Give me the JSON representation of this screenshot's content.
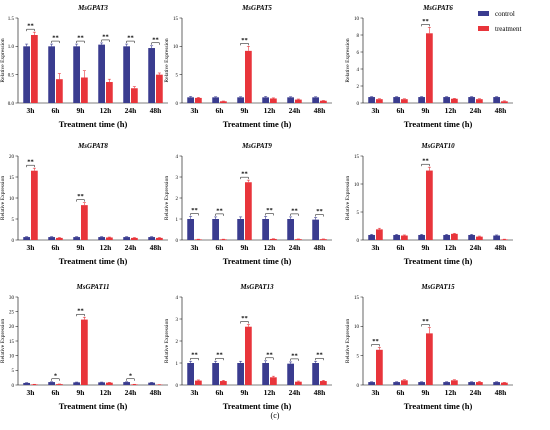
{
  "figure": {
    "caption": "(c)",
    "legend": [
      {
        "label": "control",
        "color": "#3a3c8f"
      },
      {
        "label": "treatment",
        "color": "#e8353b"
      }
    ]
  },
  "chart_data": [
    {
      "type": "bar",
      "title": "MsGPAT3",
      "ylabel": "Relative Expression",
      "xlabel": "Treatment time (h)",
      "categories": [
        "3h",
        "6h",
        "9h",
        "12h",
        "24h",
        "48h"
      ],
      "ylim": [
        0,
        1.5
      ],
      "yticks": [
        "0.0",
        "0.5",
        "1.0",
        "1.5"
      ],
      "series": [
        {
          "name": "control",
          "values": [
            1.0,
            1.0,
            1.0,
            1.03,
            1.0,
            0.97
          ],
          "errors": [
            0.04,
            0.04,
            0.04,
            0.03,
            0.04,
            0.04
          ]
        },
        {
          "name": "treatment",
          "values": [
            1.2,
            0.42,
            0.45,
            0.37,
            0.26,
            0.5
          ],
          "errors": [
            0.05,
            0.1,
            0.12,
            0.05,
            0.03,
            0.03
          ]
        }
      ],
      "significance": [
        "**",
        "**",
        "**",
        "**",
        "**",
        "**"
      ]
    },
    {
      "type": "bar",
      "title": "MsGPAT5",
      "ylabel": "Relative Expression",
      "xlabel": "Treatment time (h)",
      "categories": [
        "3h",
        "6h",
        "9h",
        "12h",
        "24h",
        "48h"
      ],
      "ylim": [
        0,
        15
      ],
      "yticks": [
        "0",
        "5",
        "10",
        "15"
      ],
      "series": [
        {
          "name": "control",
          "values": [
            1.0,
            1.0,
            1.0,
            1.0,
            1.0,
            1.0
          ],
          "errors": [
            0.15,
            0.1,
            0.1,
            0.15,
            0.1,
            0.1
          ]
        },
        {
          "name": "treatment",
          "values": [
            0.9,
            0.3,
            9.2,
            0.8,
            0.6,
            0.4
          ],
          "errors": [
            0.1,
            0.05,
            0.8,
            0.1,
            0.1,
            0.05
          ]
        }
      ],
      "significance": [
        "",
        "",
        "**",
        "",
        "",
        ""
      ]
    },
    {
      "type": "bar",
      "title": "MsGPAT6",
      "ylabel": "Relative Expression",
      "xlabel": "Treatment time (h)",
      "categories": [
        "3h",
        "6h",
        "9h",
        "12h",
        "24h",
        "48h"
      ],
      "ylim": [
        0,
        10
      ],
      "yticks": [
        "0",
        "2",
        "4",
        "6",
        "8",
        "10"
      ],
      "series": [
        {
          "name": "control",
          "values": [
            0.7,
            0.7,
            0.7,
            0.7,
            0.7,
            0.7
          ],
          "errors": [
            0.05,
            0.05,
            0.05,
            0.05,
            0.05,
            0.05
          ]
        },
        {
          "name": "treatment",
          "values": [
            0.45,
            0.45,
            8.2,
            0.5,
            0.45,
            0.2
          ],
          "errors": [
            0.05,
            0.05,
            0.7,
            0.05,
            0.05,
            0.05
          ]
        }
      ],
      "significance": [
        "",
        "",
        "**",
        "",
        "",
        ""
      ]
    },
    {
      "type": "bar",
      "title": "MsGPAT8",
      "ylabel": "Relative Expression",
      "xlabel": "Treatment time (h)",
      "categories": [
        "3h",
        "6h",
        "9h",
        "12h",
        "24h",
        "48h"
      ],
      "ylim": [
        0,
        20
      ],
      "yticks": [
        "0",
        "5",
        "10",
        "15",
        "20"
      ],
      "series": [
        {
          "name": "control",
          "values": [
            0.7,
            0.7,
            0.7,
            0.7,
            0.7,
            0.7
          ],
          "errors": [
            0.1,
            0.1,
            0.1,
            0.1,
            0.1,
            0.1
          ]
        },
        {
          "name": "treatment",
          "values": [
            16.5,
            0.5,
            8.3,
            0.6,
            0.5,
            0.5
          ],
          "errors": [
            0.6,
            0.1,
            0.6,
            0.1,
            0.1,
            0.1
          ]
        }
      ],
      "significance": [
        "**",
        "",
        "**",
        "",
        "",
        ""
      ]
    },
    {
      "type": "bar",
      "title": "MsGPAT9",
      "ylabel": "Relative Expression",
      "xlabel": "Treatment time (h)",
      "categories": [
        "3h",
        "6h",
        "9h",
        "12h",
        "24h",
        "48h"
      ],
      "ylim": [
        0,
        4
      ],
      "yticks": [
        "0",
        "1",
        "2",
        "3",
        "4"
      ],
      "series": [
        {
          "name": "control",
          "values": [
            1.0,
            1.0,
            1.0,
            1.0,
            1.0,
            0.97
          ],
          "errors": [
            0.12,
            0.1,
            0.1,
            0.12,
            0.1,
            0.1
          ]
        },
        {
          "name": "treatment",
          "values": [
            0.03,
            0.03,
            2.75,
            0.05,
            0.04,
            0.04
          ],
          "errors": [
            0.01,
            0.01,
            0.1,
            0.01,
            0.01,
            0.01
          ]
        }
      ],
      "significance": [
        "**",
        "**",
        "**",
        "**",
        "**",
        "**"
      ]
    },
    {
      "type": "bar",
      "title": "MsGPAT10",
      "ylabel": "Relative Expression",
      "xlabel": "Treatment time (h)",
      "categories": [
        "3h",
        "6h",
        "9h",
        "12h",
        "24h",
        "48h"
      ],
      "ylim": [
        0,
        15
      ],
      "yticks": [
        "0",
        "5",
        "10",
        "15"
      ],
      "series": [
        {
          "name": "control",
          "values": [
            0.9,
            0.9,
            0.9,
            0.9,
            0.9,
            0.8
          ],
          "errors": [
            0.1,
            0.1,
            0.1,
            0.1,
            0.1,
            0.1
          ]
        },
        {
          "name": "treatment",
          "values": [
            1.9,
            0.8,
            12.4,
            1.1,
            0.6,
            0.1
          ],
          "errors": [
            0.2,
            0.1,
            0.6,
            0.1,
            0.1,
            0.05
          ]
        }
      ],
      "significance": [
        "",
        "",
        "**",
        "",
        "",
        ""
      ]
    },
    {
      "type": "bar",
      "title": "MsGPAT11",
      "ylabel": "Relative Expression",
      "xlabel": "Treatment time (h)",
      "categories": [
        "3h",
        "6h",
        "9h",
        "12h",
        "24h",
        "48h"
      ],
      "ylim": [
        0,
        30
      ],
      "yticks": [
        "0",
        "5",
        "10",
        "15",
        "20",
        "25",
        "30"
      ],
      "series": [
        {
          "name": "control",
          "values": [
            0.7,
            1.0,
            0.9,
            0.9,
            1.0,
            0.8
          ],
          "errors": [
            0.1,
            0.1,
            0.1,
            0.1,
            0.1,
            0.1
          ]
        },
        {
          "name": "treatment",
          "values": [
            0.2,
            0.3,
            22.3,
            0.8,
            0.2,
            0.1
          ],
          "errors": [
            0.05,
            0.05,
            0.8,
            0.1,
            0.05,
            0.05
          ]
        }
      ],
      "significance": [
        "",
        "*",
        "**",
        "",
        "*",
        ""
      ]
    },
    {
      "type": "bar",
      "title": "MsGPAT13",
      "ylabel": "Relative Expression",
      "xlabel": "Treatment time (h)",
      "categories": [
        "3h",
        "6h",
        "9h",
        "12h",
        "24h",
        "48h"
      ],
      "ylim": [
        0,
        4
      ],
      "yticks": [
        "0",
        "1",
        "2",
        "3",
        "4"
      ],
      "series": [
        {
          "name": "control",
          "values": [
            1.0,
            1.0,
            1.0,
            1.0,
            0.97,
            1.0
          ],
          "errors": [
            0.08,
            0.08,
            0.08,
            0.1,
            0.08,
            0.08
          ]
        },
        {
          "name": "treatment",
          "values": [
            0.2,
            0.18,
            2.65,
            0.35,
            0.15,
            0.18
          ],
          "errors": [
            0.03,
            0.03,
            0.1,
            0.05,
            0.03,
            0.03
          ]
        }
      ],
      "significance": [
        "**",
        "**",
        "**",
        "**",
        "**",
        "**"
      ]
    },
    {
      "type": "bar",
      "title": "MsGPAT15",
      "ylabel": "Relative Expression",
      "xlabel": "Treatment time (h)",
      "categories": [
        "3h",
        "6h",
        "9h",
        "12h",
        "24h",
        "48h"
      ],
      "ylim": [
        0,
        15
      ],
      "yticks": [
        "0",
        "5",
        "10",
        "15"
      ],
      "series": [
        {
          "name": "control",
          "values": [
            0.5,
            0.5,
            0.5,
            0.5,
            0.5,
            0.5
          ],
          "errors": [
            0.05,
            0.05,
            0.05,
            0.05,
            0.05,
            0.05
          ]
        },
        {
          "name": "treatment",
          "values": [
            6.0,
            0.8,
            8.8,
            0.8,
            0.5,
            0.4
          ],
          "errors": [
            0.4,
            0.1,
            1.0,
            0.1,
            0.1,
            0.05
          ]
        }
      ],
      "significance": [
        "**",
        "",
        "**",
        "",
        "",
        ""
      ]
    }
  ]
}
